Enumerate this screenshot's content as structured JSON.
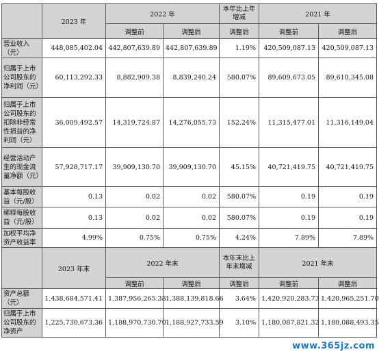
{
  "table1": {
    "header": {
      "year_2023": "2023 年",
      "year_2022": "2022 年",
      "change": "本年比上年增减",
      "year_2021": "2021 年",
      "before_adj": "调整前",
      "after_adj": "调整后"
    },
    "rows": [
      {
        "label": "营业收入（元）",
        "v2023": "448,085,402.04",
        "v2022a": "442,807,639.89",
        "v2022b": "442,807,639.89",
        "chg": "1.19%",
        "v2021a": "420,509,087.13",
        "v2021b": "420,509,087.13"
      },
      {
        "label": "归属于上市公司股东的净利润（元）",
        "v2023": "60,113,292.33",
        "v2022a": "8,882,909.38",
        "v2022b": "8,839,240.24",
        "chg": "580.07%",
        "v2021a": "89,609,673.05",
        "v2021b": "89,610,345.08"
      },
      {
        "label": "归属于上市公司股东的扣除非经常性损益的净利润（元）",
        "v2023": "36,009,492.57",
        "v2022a": "14,319,724.87",
        "v2022b": "14,276,055.73",
        "chg": "152.24%",
        "v2021a": "11,315,477.01",
        "v2021b": "11,316,149.04"
      },
      {
        "label": "经营活动产生的现金流量净额（元）",
        "v2023": "57,928,717.17",
        "v2022a": "39,909,130.70",
        "v2022b": "39,909,130.70",
        "chg": "45.15%",
        "v2021a": "40,721,419.75",
        "v2021b": "40,721,419.75"
      },
      {
        "label": "基本每股收益（元/股）",
        "v2023": "0.13",
        "v2022a": "0.02",
        "v2022b": "0.02",
        "chg": "580.07%",
        "v2021a": "0.19",
        "v2021b": "0.19"
      },
      {
        "label": "稀释每股收益（元/股）",
        "v2023": "0.13",
        "v2022a": "0.02",
        "v2022b": "0.02",
        "chg": "580.07%",
        "v2021a": "0.19",
        "v2021b": "0.19"
      },
      {
        "label": "加权平均净资产收益率",
        "v2023": "4.99%",
        "v2022a": "0.75%",
        "v2022b": "0.75%",
        "chg": "4.24%",
        "v2021a": "7.89%",
        "v2021b": "7.89%"
      }
    ]
  },
  "table2": {
    "header": {
      "year_2023": "2023 年末",
      "year_2022": "2022 年末",
      "change": "本年末比上年末增减",
      "year_2021": "2021 年末",
      "before_adj": "调整前",
      "after_adj": "调整后"
    },
    "rows": [
      {
        "label": "资产总额（元）",
        "v2023": "1,438,684,571.41",
        "v2022a": "1,387,956,265.38",
        "v2022b": "1,388,139,818.66",
        "chg": "3.64%",
        "v2021a": "1,420,920,283.73",
        "v2021b": "1,420,965,251.70"
      },
      {
        "label": "归属于上市公司股东的净资产",
        "v2023": "1,225,730,673.36",
        "v2022a": "1,188,970,730.70",
        "v2022b": "1,188,927,733.59",
        "chg": "3.10%",
        "v2021a": "1,180,087,821.32",
        "v2021b": "1,180,088,493.35"
      }
    ]
  },
  "watermark": "www.365jz.com"
}
